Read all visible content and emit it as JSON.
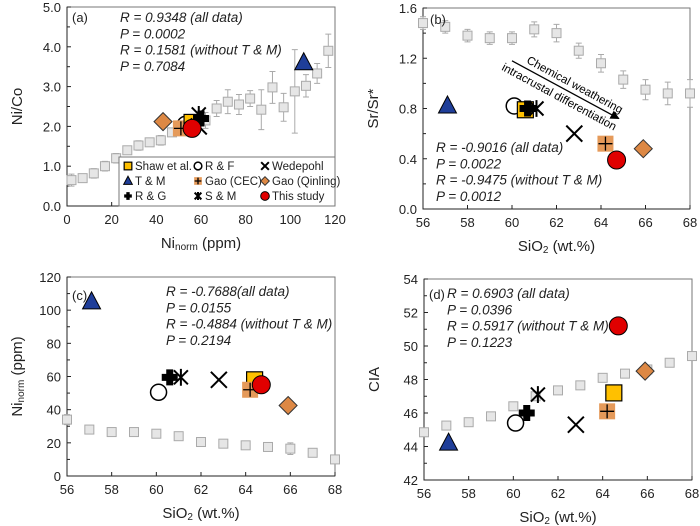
{
  "colors": {
    "shaw": "#ffc000",
    "tm": "#1f3e99",
    "gao_cec": "#e59a5a",
    "gao_qinling": "#dd8844",
    "this_study": "#e00000",
    "gray_fill": "#e6e6e6",
    "gray_stroke": "#aaaaaa"
  },
  "chart_data": [
    {
      "type": "scatter",
      "panel_label": "(a)",
      "xlabel": {
        "main": "Ni",
        "sub": "norm",
        "rest": " (ppm)"
      },
      "ylabel": {
        "main": "Ni/Co",
        "sub": "",
        "rest": ""
      },
      "xlim": [
        0,
        120
      ],
      "ylim": [
        0,
        5
      ],
      "xticks": [
        0,
        20,
        40,
        60,
        80,
        100,
        120
      ],
      "yticks": [
        0,
        1,
        2,
        3,
        4,
        5
      ],
      "ydec": 1,
      "annotations": [
        "R = 0.9348 (all data)",
        "P = 0.0002",
        "R = 0.1581 (without T & M)",
        "P = 0.7084"
      ],
      "legend": {
        "placement": "bottom-right",
        "entries": [
          {
            "key": "shaw",
            "label": "Shaw et al."
          },
          {
            "key": "rf",
            "label": "R & F"
          },
          {
            "key": "wedepohl",
            "label": "Wedepohl"
          },
          {
            "key": "tm",
            "label": "T & M"
          },
          {
            "key": "gao_cec",
            "label": "Gao (CEC)"
          },
          {
            "key": "gao_qinling",
            "label": "Gao (Qinling)"
          },
          {
            "key": "rg",
            "label": "R & G"
          },
          {
            "key": "sm",
            "label": "S & M"
          },
          {
            "key": "this_study",
            "label": "This study"
          }
        ]
      },
      "gray_series": {
        "x": [
          2,
          7,
          12,
          17,
          22,
          27,
          32,
          37,
          42,
          47,
          52,
          57,
          62,
          67,
          72,
          77,
          82,
          87,
          92,
          97,
          102,
          107,
          112,
          117
        ],
        "y": [
          0.65,
          0.7,
          0.82,
          1.0,
          1.2,
          1.4,
          1.52,
          1.6,
          1.65,
          1.85,
          1.95,
          2.0,
          2.15,
          2.45,
          2.62,
          2.55,
          2.7,
          2.42,
          2.98,
          2.48,
          2.88,
          3.02,
          3.33,
          3.9
        ],
        "err": [
          0.15,
          0.05,
          0.12,
          0.12,
          0.12,
          0.06,
          0.12,
          0.06,
          0.12,
          0.1,
          0.1,
          0.2,
          0.2,
          0.2,
          0.3,
          0.25,
          0.2,
          0.5,
          0.4,
          0.35,
          1.05,
          0.28,
          0.25,
          0.42
        ]
      },
      "points": [
        {
          "key": "gao_qinling",
          "x": 43,
          "y": 2.12
        },
        {
          "key": "rf",
          "x": 53,
          "y": 2.05
        },
        {
          "key": "gao_cec",
          "x": 51,
          "y": 1.95
        },
        {
          "key": "shaw",
          "x": 56,
          "y": 2.1
        },
        {
          "key": "rg",
          "x": 60,
          "y": 2.2
        },
        {
          "key": "sm",
          "x": 59,
          "y": 2.3
        },
        {
          "key": "wedepohl",
          "x": 59,
          "y": 2.0
        },
        {
          "key": "this_study",
          "x": 56,
          "y": 1.95
        },
        {
          "key": "tm",
          "x": 106,
          "y": 3.6
        }
      ]
    },
    {
      "type": "scatter",
      "panel_label": "(b)",
      "xlabel": {
        "main": "SiO",
        "sub": "2",
        "rest": " (wt.%)"
      },
      "ylabel": {
        "main": "Sr/Sr*",
        "sub": "",
        "rest": ""
      },
      "xlim": [
        56,
        68
      ],
      "ylim": [
        0,
        1.6
      ],
      "xticks": [
        56,
        58,
        60,
        62,
        64,
        66,
        68
      ],
      "yticks": [
        0,
        0.4,
        0.8,
        1.2,
        1.6
      ],
      "ydec": 1,
      "annotations": [
        "R = -0.9016 (all data)",
        "P = 0.0022",
        "R = -0.9475 (without T & M)",
        "P = 0.0012"
      ],
      "arrow": {
        "from": [
          60,
          1.18
        ],
        "to": [
          64.8,
          0.72
        ],
        "label_above": "Chemical weathering",
        "label_below": "intracrustal differentiation"
      },
      "gray_series": {
        "x": [
          56,
          57,
          58,
          59,
          60,
          61,
          62,
          63,
          64,
          65,
          66,
          67,
          68
        ],
        "y": [
          1.48,
          1.45,
          1.38,
          1.36,
          1.36,
          1.43,
          1.4,
          1.26,
          1.16,
          1.03,
          0.95,
          0.92,
          0.92
        ],
        "err": [
          0.05,
          0.05,
          0.05,
          0.05,
          0.05,
          0.06,
          0.07,
          0.06,
          0.07,
          0.07,
          0.08,
          0.09,
          0.11
        ]
      },
      "points": [
        {
          "key": "tm",
          "x": 57.1,
          "y": 0.82
        },
        {
          "key": "rf",
          "x": 60.1,
          "y": 0.82
        },
        {
          "key": "shaw",
          "x": 60.6,
          "y": 0.79
        },
        {
          "key": "rg",
          "x": 60.7,
          "y": 0.8
        },
        {
          "key": "sm",
          "x": 61.1,
          "y": 0.8
        },
        {
          "key": "wedepohl",
          "x": 62.8,
          "y": 0.6
        },
        {
          "key": "gao_cec",
          "x": 64.2,
          "y": 0.52
        },
        {
          "key": "gao_qinling",
          "x": 65.9,
          "y": 0.48
        },
        {
          "key": "this_study",
          "x": 64.7,
          "y": 0.39
        }
      ]
    },
    {
      "type": "scatter",
      "panel_label": "(c)",
      "xlabel": {
        "main": "SiO",
        "sub": "2",
        "rest": " (wt.%)"
      },
      "ylabel": {
        "main": "Ni",
        "sub": "norm",
        "rest": " (ppm)"
      },
      "xlim": [
        56,
        68
      ],
      "ylim": [
        0,
        120
      ],
      "xticks": [
        56,
        58,
        60,
        62,
        64,
        66,
        68
      ],
      "yticks": [
        0,
        20,
        40,
        60,
        80,
        100,
        120
      ],
      "ydec": 0,
      "annotations": [
        "R = -0.7688(all data)",
        "P = 0.0155",
        "R = -0.4884 (without T & M)",
        "P = 0.2194"
      ],
      "gray_series": {
        "x": [
          56,
          57,
          58,
          59,
          60,
          61,
          62,
          63,
          64,
          65,
          66,
          67,
          68
        ],
        "y": [
          34,
          28,
          26.5,
          26.5,
          25.5,
          24,
          20.5,
          19.5,
          18.5,
          17.5,
          16.5,
          14,
          10
        ],
        "err": [
          3,
          2.5,
          1.5,
          1.5,
          1,
          1,
          1,
          1,
          1.5,
          2,
          3.5,
          2,
          1
        ]
      },
      "points": [
        {
          "key": "tm",
          "x": 57.1,
          "y": 105
        },
        {
          "key": "rf",
          "x": 60.1,
          "y": 50.5
        },
        {
          "key": "rg",
          "x": 60.6,
          "y": 59.5
        },
        {
          "key": "sm",
          "x": 61.1,
          "y": 59.5
        },
        {
          "key": "wedepohl",
          "x": 62.8,
          "y": 58
        },
        {
          "key": "shaw",
          "x": 64.4,
          "y": 58
        },
        {
          "key": "gao_cec",
          "x": 64.2,
          "y": 52
        },
        {
          "key": "this_study",
          "x": 64.7,
          "y": 55
        },
        {
          "key": "gao_qinling",
          "x": 65.9,
          "y": 42.5
        }
      ]
    },
    {
      "type": "scatter",
      "panel_label": "(d)",
      "xlabel": {
        "main": "SiO",
        "sub": "2",
        "rest": " (wt.%)"
      },
      "ylabel": {
        "main": "CIA",
        "sub": "",
        "rest": ""
      },
      "xlim": [
        56,
        68
      ],
      "ylim": [
        42,
        54
      ],
      "xticks": [
        56,
        58,
        60,
        62,
        64,
        66,
        68
      ],
      "yticks": [
        42,
        44,
        46,
        48,
        50,
        52,
        54
      ],
      "ydec": 0,
      "annotations": [
        "R = 0.6903 (all data)",
        "P = 0.0396",
        "R = 0.5917 (without T & M)",
        "P = 0.1223"
      ],
      "gray_series": {
        "x": [
          56,
          57,
          58,
          59,
          60,
          61,
          62,
          63,
          64,
          65,
          66,
          67,
          68
        ],
        "y": [
          44.85,
          45.25,
          45.45,
          45.8,
          46.4,
          47.0,
          47.35,
          47.65,
          48.1,
          48.35,
          48.6,
          49.0,
          49.4
        ],
        "err": [
          0.1,
          0.1,
          0.1,
          0.1,
          0.1,
          0.1,
          0.1,
          0.1,
          0.1,
          0.1,
          0.1,
          0.15,
          0.15
        ]
      },
      "points": [
        {
          "key": "tm",
          "x": 57.1,
          "y": 44.2
        },
        {
          "key": "rf",
          "x": 60.1,
          "y": 45.4
        },
        {
          "key": "rg",
          "x": 60.6,
          "y": 46.0
        },
        {
          "key": "sm",
          "x": 61.1,
          "y": 47.1
        },
        {
          "key": "wedepohl",
          "x": 62.8,
          "y": 45.3
        },
        {
          "key": "gao_cec",
          "x": 64.2,
          "y": 46.1
        },
        {
          "key": "shaw",
          "x": 64.5,
          "y": 47.2
        },
        {
          "key": "gao_qinling",
          "x": 65.9,
          "y": 48.5
        },
        {
          "key": "this_study",
          "x": 64.7,
          "y": 51.2
        }
      ]
    }
  ]
}
